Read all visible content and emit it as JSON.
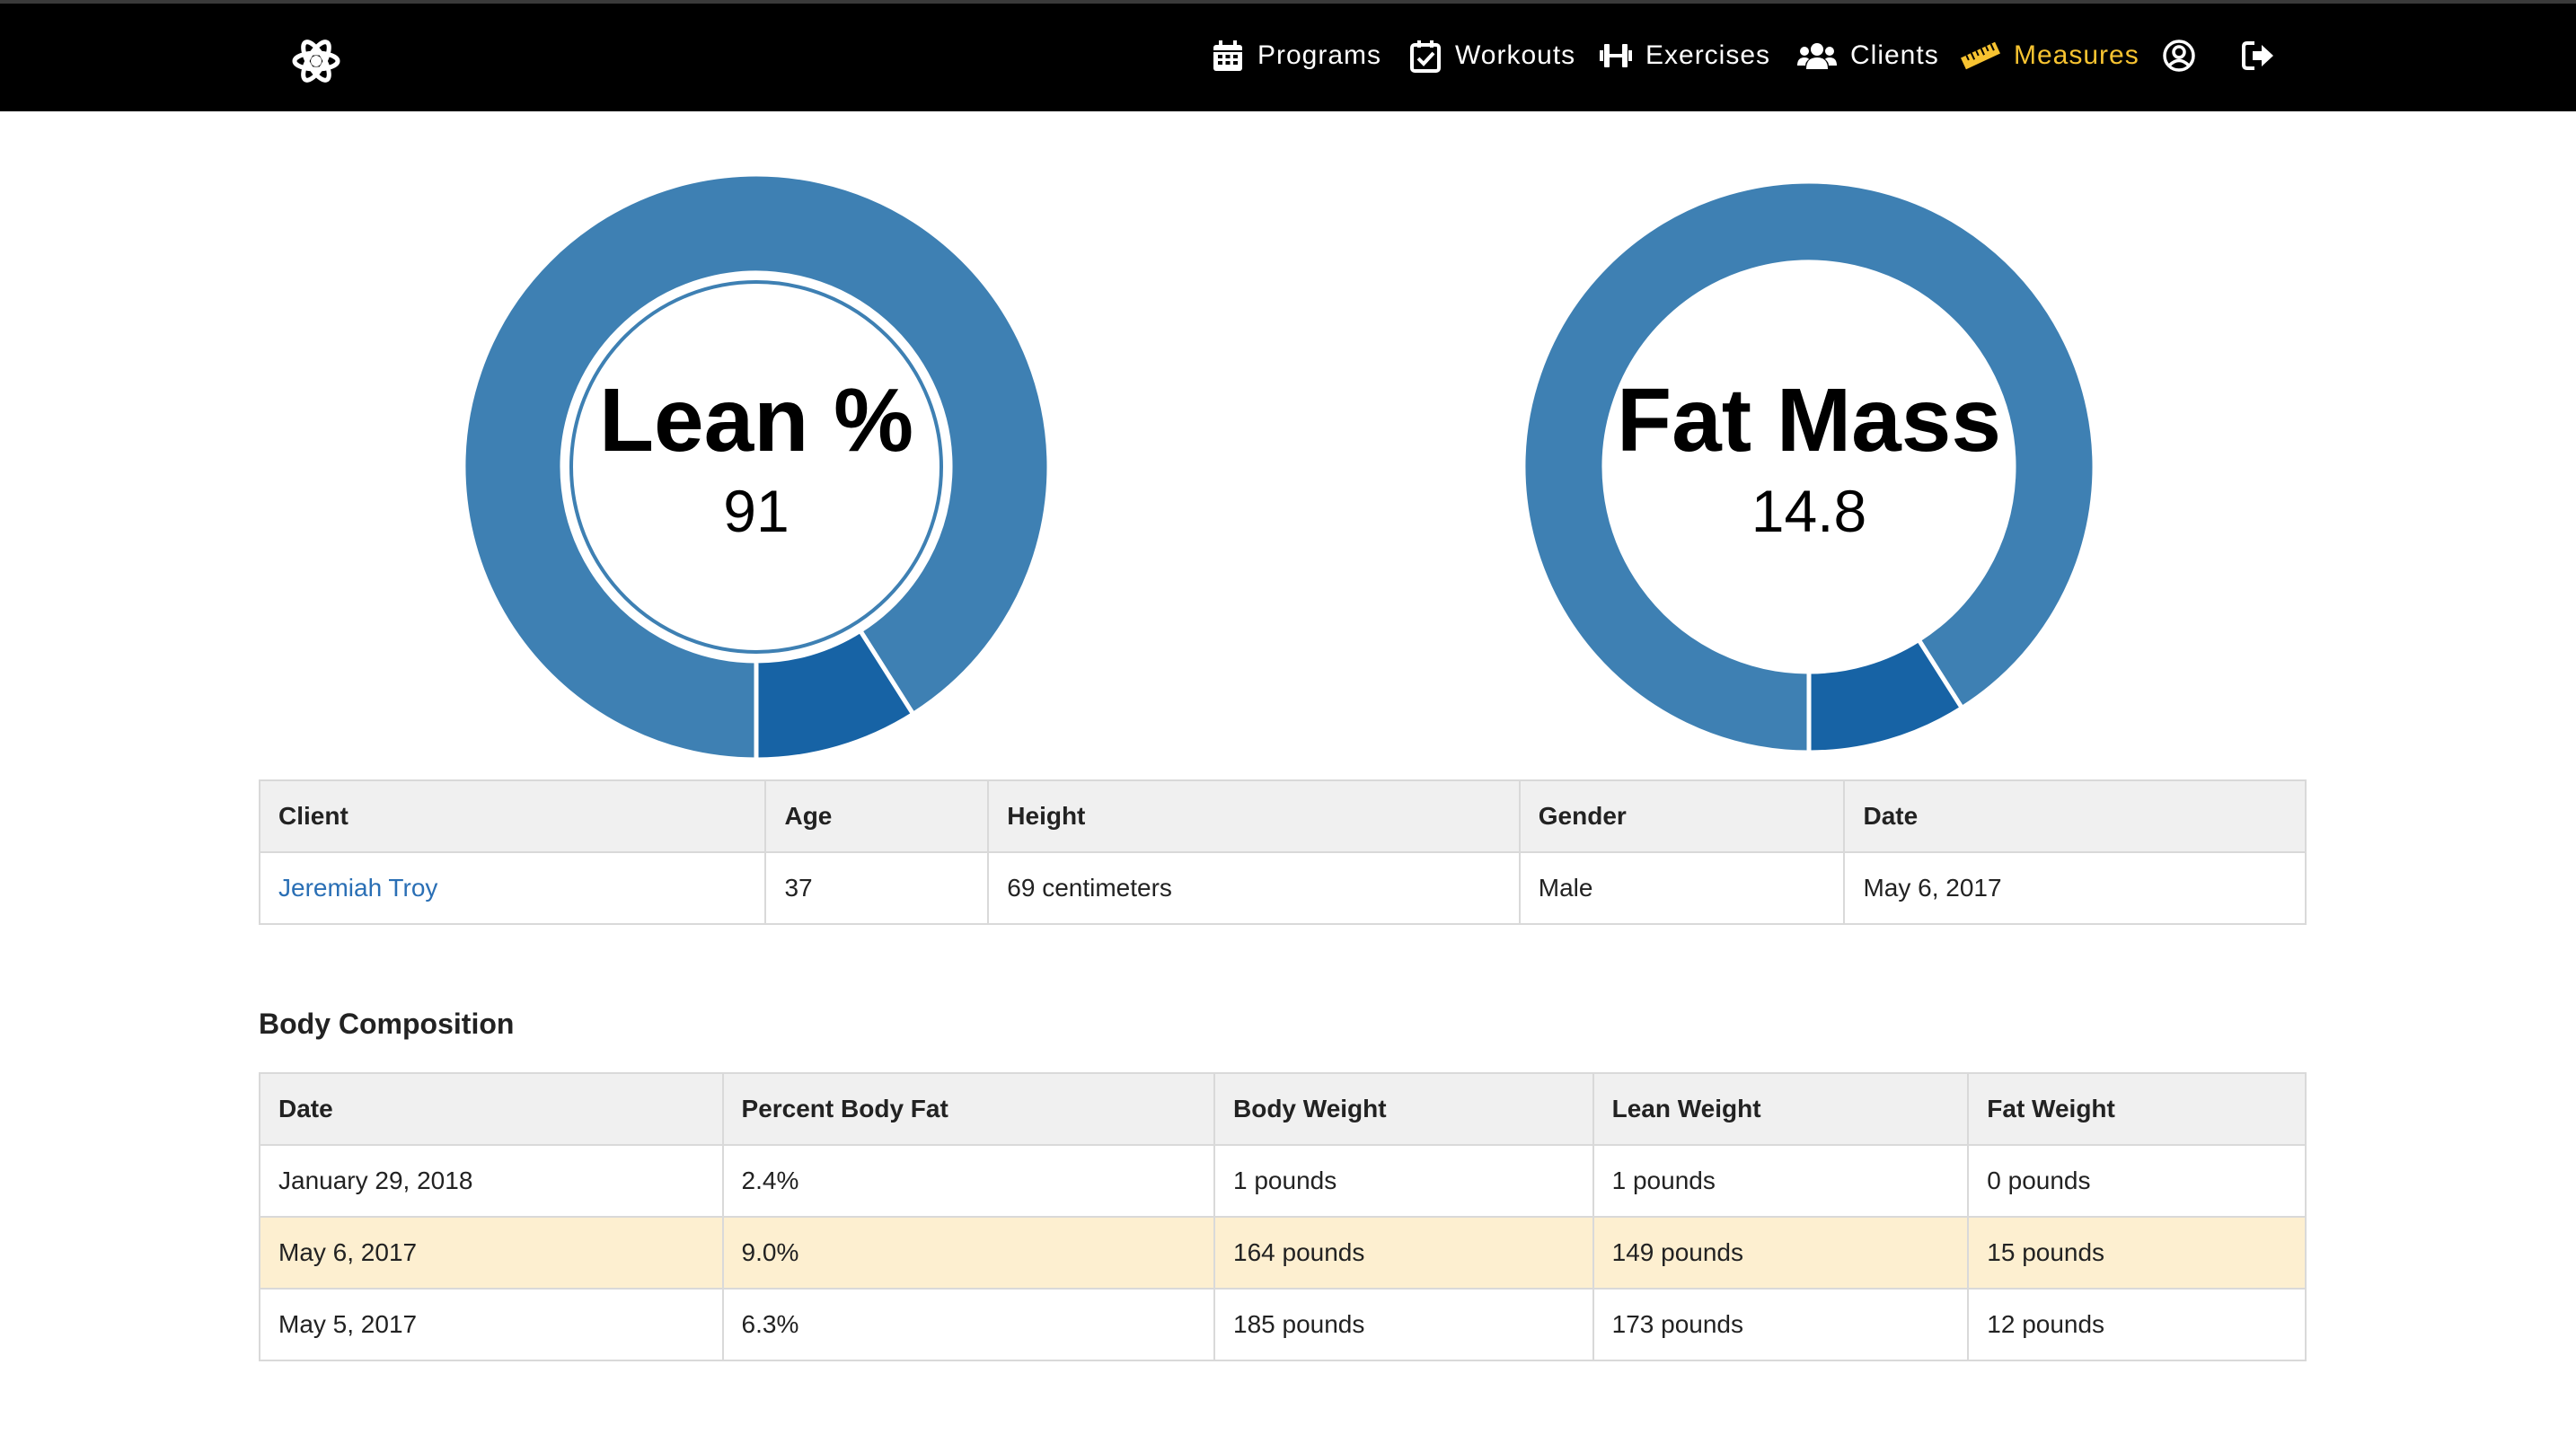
{
  "nav": {
    "programs": "Programs",
    "workouts": "Workouts",
    "exercises": "Exercises",
    "clients": "Clients",
    "measures": "Measures",
    "active_color": "#f7c331",
    "icons": {
      "logo": "atom-gear-icon",
      "programs": "calendar-icon",
      "workouts": "calendar-check-icon",
      "exercises": "dumbbell-icon",
      "clients": "users-icon",
      "measures": "ruler-icon",
      "profile": "user-circle-icon",
      "logout": "sign-out-icon"
    }
  },
  "chart_data": [
    {
      "type": "pie",
      "title": "Lean %",
      "value_label": "91",
      "slices": [
        {
          "label": "Lean %",
          "value": 91,
          "color": "#3e80b3"
        },
        {
          "label": "",
          "value": 9,
          "color": "#1763a5"
        }
      ]
    },
    {
      "type": "pie",
      "title": "Fat Mass",
      "value_label": "14.8",
      "slices": [
        {
          "label": "",
          "value": 91,
          "color": "#3e80b3"
        },
        {
          "label": "Fat Mass",
          "value": 9,
          "color": "#1763a5"
        }
      ]
    }
  ],
  "client_table": {
    "headers": [
      "Client",
      "Age",
      "Height",
      "Gender",
      "Date"
    ],
    "row": {
      "client": "Jeremiah Troy",
      "age": "37",
      "height": "69 centimeters",
      "gender": "Male",
      "date": "May 6, 2017"
    }
  },
  "body_composition": {
    "title": "Body Composition",
    "headers": [
      "Date",
      "Percent Body Fat",
      "Body Weight",
      "Lean Weight",
      "Fat Weight"
    ],
    "rows": [
      [
        "January 29, 2018",
        "2.4%",
        "1 pounds",
        "1 pounds",
        "0 pounds"
      ],
      [
        "May 6, 2017",
        "9.0%",
        "164 pounds",
        "149 pounds",
        "15 pounds"
      ],
      [
        "May 5, 2017",
        "6.3%",
        "185 pounds",
        "173 pounds",
        "12 pounds"
      ]
    ],
    "highlight_color": "#fdefd0"
  }
}
